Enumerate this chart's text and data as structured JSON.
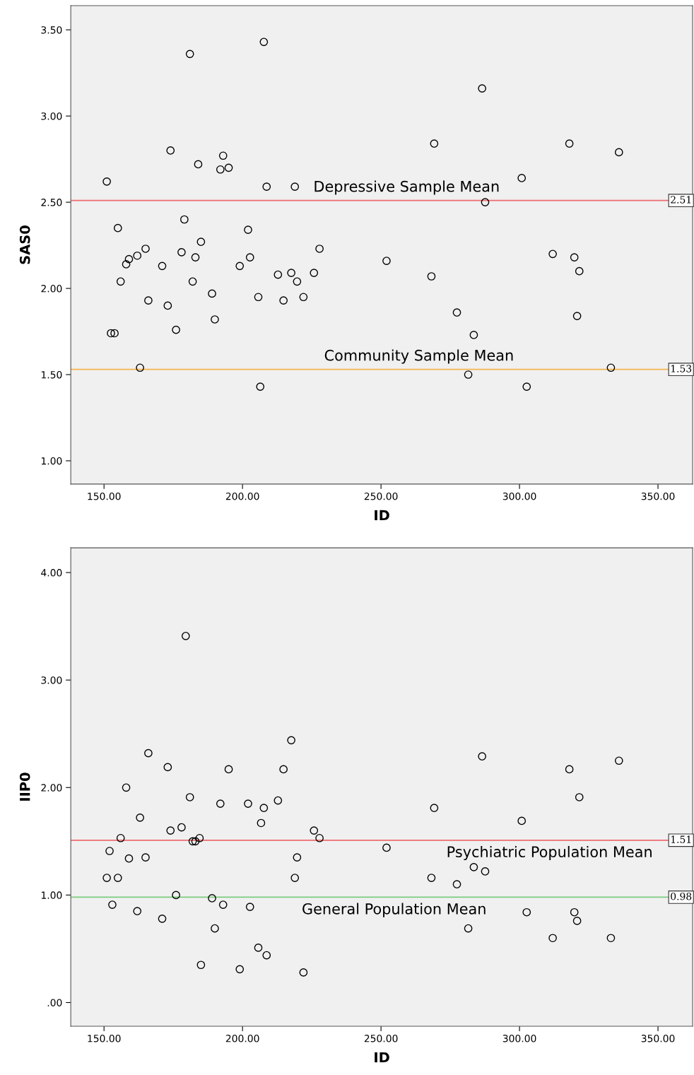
{
  "chart_data": [
    {
      "type": "scatter",
      "xlabel": "ID",
      "ylabel": "SAS0",
      "marker": "circle",
      "grid": false,
      "xlim": [
        138,
        362.5
      ],
      "ylim": [
        0.865,
        3.64
      ],
      "xticks": [
        {
          "value": 150,
          "label": "150.00"
        },
        {
          "value": 200,
          "label": "200.00"
        },
        {
          "value": 250,
          "label": "250.00"
        },
        {
          "value": 300,
          "label": "300.00"
        },
        {
          "value": 350,
          "label": "350.00"
        }
      ],
      "yticks": [
        {
          "value": 1.0,
          "label": "1.00"
        },
        {
          "value": 1.5,
          "label": "1.50"
        },
        {
          "value": 2.0,
          "label": "2.00"
        },
        {
          "value": 2.5,
          "label": "2.50"
        },
        {
          "value": 3.0,
          "label": "3.00"
        },
        {
          "value": 3.5,
          "label": "3.50"
        }
      ],
      "x": [
        151,
        152.5,
        153.8,
        155,
        156,
        158,
        159,
        162,
        165,
        166,
        163,
        171,
        173,
        174,
        176,
        178,
        179,
        181,
        182,
        183,
        184,
        185,
        189,
        190,
        192,
        193,
        195,
        199,
        202,
        202.7,
        205.7,
        206.4,
        207.7,
        208.7,
        212.8,
        214.8,
        217.6,
        218.9,
        219.7,
        222,
        225.8,
        227.8,
        252,
        268.2,
        269.2,
        277.4,
        283.5,
        281.5,
        286.5,
        287.6,
        300.8,
        302.6,
        312,
        318,
        319.8,
        321.6,
        320.8,
        333,
        335.9
      ],
      "series": [
        {
          "color": "#000000",
          "values": [
            2.62,
            1.74,
            1.74,
            2.35,
            2.04,
            2.14,
            2.17,
            2.19,
            2.23,
            1.93,
            1.54,
            2.13,
            1.9,
            2.8,
            1.76,
            2.21,
            2.4,
            3.36,
            2.04,
            2.18,
            2.72,
            2.27,
            1.97,
            1.82,
            2.69,
            2.77,
            2.7,
            2.13,
            2.34,
            2.18,
            1.95,
            1.43,
            3.43,
            2.59,
            2.08,
            1.93,
            2.09,
            2.59,
            2.04,
            1.95,
            2.09,
            2.23,
            2.16,
            2.07,
            2.84,
            1.86,
            1.73,
            1.5,
            3.16,
            2.5,
            2.64,
            1.43,
            2.2,
            2.84,
            2.18,
            2.1,
            1.84,
            1.54,
            2.79
          ]
        }
      ],
      "ref_lines": [
        {
          "axis": "y",
          "value": 2.51,
          "label": "Depressive Sample Mean",
          "color": "#ee6b6f"
        },
        {
          "axis": "y",
          "value": 1.53,
          "label": "Community Sample Mean",
          "color": "#f5b450"
        }
      ],
      "annotations": [
        {
          "text": "2.51",
          "y": 2.51
        },
        {
          "text": "1.53",
          "y": 1.53
        }
      ]
    },
    {
      "type": "scatter",
      "xlabel": "ID",
      "ylabel": "IIP0",
      "marker": "circle",
      "grid": false,
      "xlim": [
        138,
        362.5
      ],
      "ylim": [
        -0.22,
        4.23
      ],
      "xticks": [
        {
          "value": 150,
          "label": "150.00"
        },
        {
          "value": 200,
          "label": "200.00"
        },
        {
          "value": 250,
          "label": "250.00"
        },
        {
          "value": 300,
          "label": "300.00"
        },
        {
          "value": 350,
          "label": "350.00"
        }
      ],
      "yticks": [
        {
          "value": 0,
          "label": ".00"
        },
        {
          "value": 1.0,
          "label": "1.00"
        },
        {
          "value": 2.0,
          "label": "2.00"
        },
        {
          "value": 3.0,
          "label": "3.00"
        },
        {
          "value": 4.0,
          "label": "4.00"
        }
      ],
      "x": [
        151,
        152,
        153,
        155,
        156,
        158,
        159,
        162,
        163,
        165,
        166,
        171,
        173,
        174,
        176,
        178,
        179.5,
        181,
        182,
        183,
        184.5,
        185,
        189,
        190,
        192,
        193,
        195,
        199,
        202,
        202.7,
        205.7,
        206.7,
        207.7,
        208.7,
        212.8,
        214.8,
        217.6,
        218.9,
        219.7,
        222,
        225.8,
        227.8,
        252,
        268.2,
        269.2,
        277.4,
        283.5,
        281.5,
        286.5,
        287.6,
        300.8,
        302.6,
        312,
        318,
        319.8,
        321.6,
        320.8,
        333,
        335.9
      ],
      "series": [
        {
          "color": "#000000",
          "values": [
            1.16,
            1.41,
            0.91,
            1.16,
            1.53,
            2.0,
            1.34,
            0.85,
            1.72,
            1.35,
            2.32,
            0.78,
            2.19,
            1.6,
            1.0,
            1.63,
            3.41,
            1.91,
            1.5,
            1.5,
            1.53,
            0.35,
            0.97,
            0.69,
            1.85,
            0.91,
            2.17,
            0.31,
            1.85,
            0.89,
            0.51,
            1.67,
            1.81,
            0.44,
            1.88,
            2.17,
            2.44,
            1.16,
            1.35,
            0.28,
            1.6,
            1.53,
            1.44,
            1.16,
            1.81,
            1.1,
            1.26,
            0.69,
            2.29,
            1.22,
            1.69,
            0.84,
            0.6,
            2.17,
            0.84,
            1.91,
            0.76,
            0.6,
            2.25
          ]
        }
      ],
      "ref_lines": [
        {
          "axis": "y",
          "value": 1.51,
          "label": "Psychiatric Population Mean",
          "color": "#ee6b6f"
        },
        {
          "axis": "y",
          "value": 0.98,
          "label": "General Population Mean",
          "color": "#7dcc7d"
        }
      ],
      "annotations": [
        {
          "text": "1.51",
          "y": 1.51
        },
        {
          "text": "0.98",
          "y": 0.98
        }
      ]
    }
  ]
}
